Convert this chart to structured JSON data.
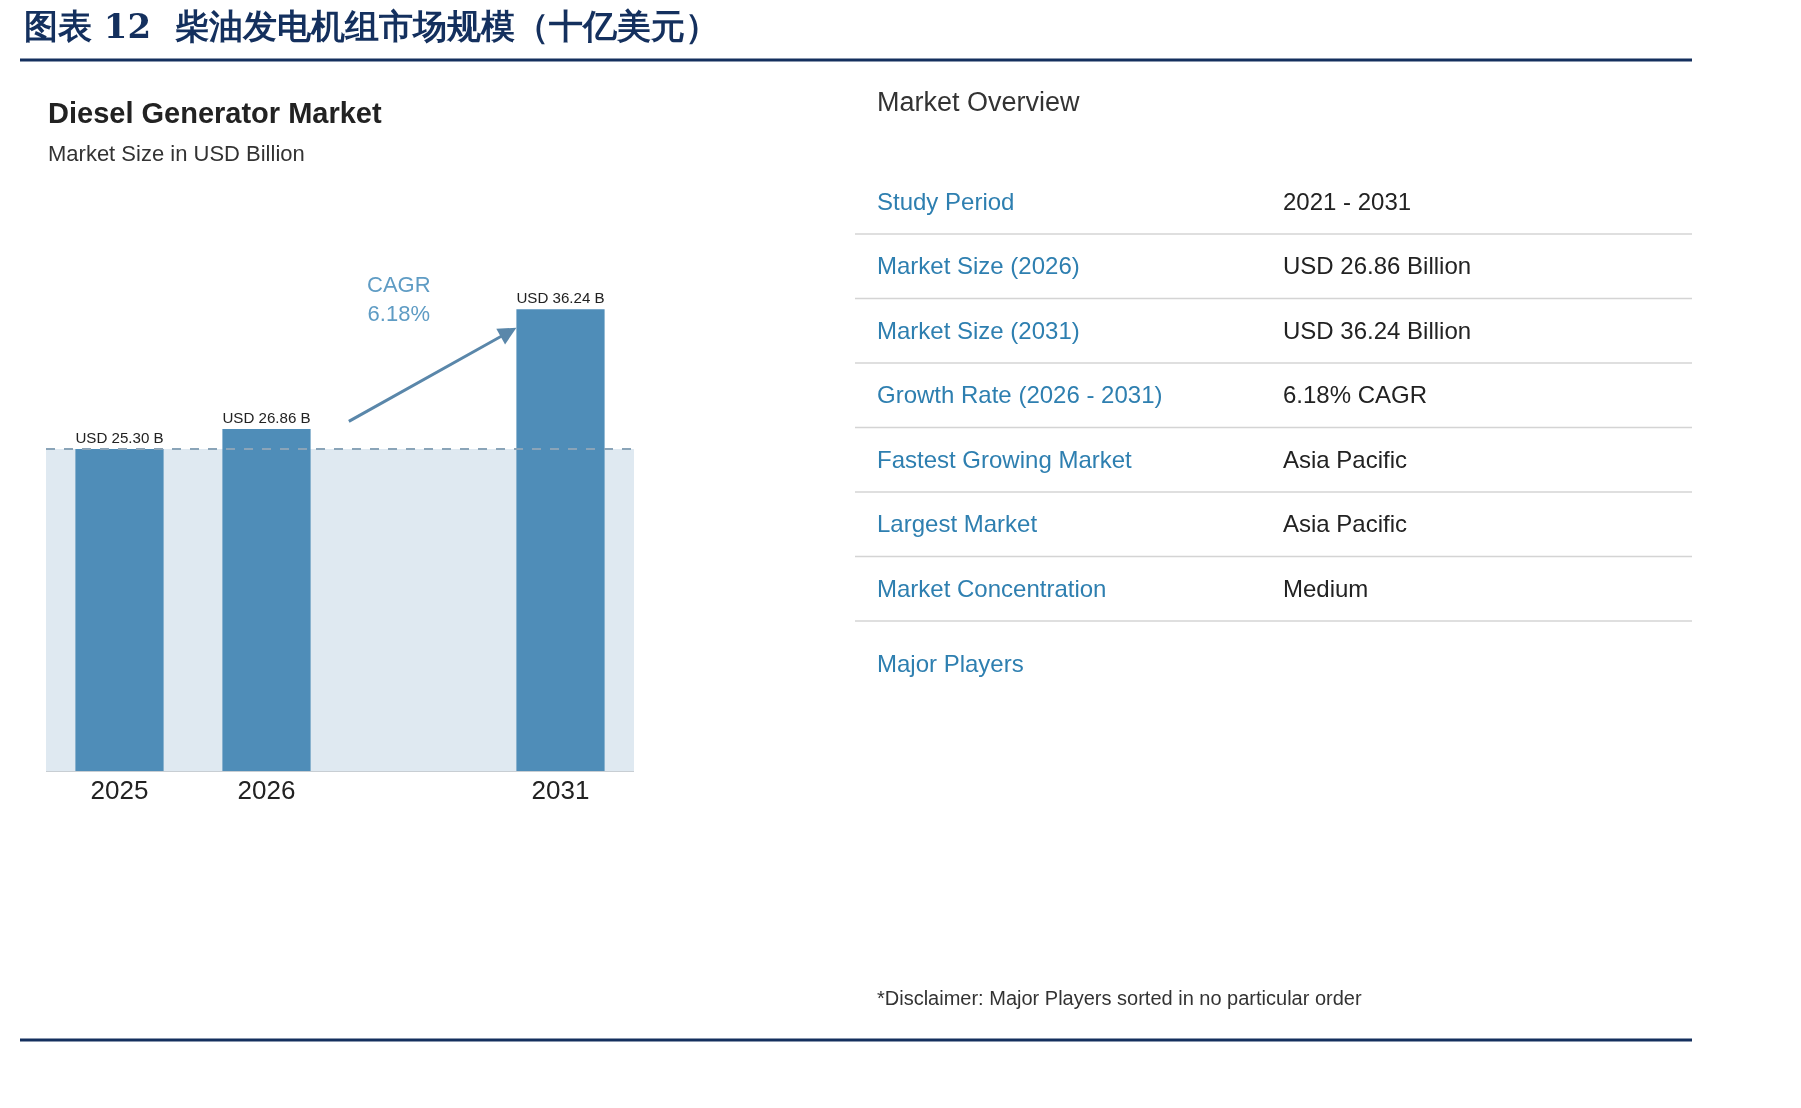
{
  "chart_data": [
    {
      "type": "bar",
      "title": "Diesel Generator Market",
      "subtitle": "Market Size in USD Billion",
      "categories": [
        "2025",
        "2026",
        null,
        "2031"
      ],
      "values": [
        25.3,
        26.86,
        null,
        36.24
      ],
      "value_labels": [
        "USD 25.30 B",
        "USD 26.86 B",
        null,
        "USD 36.24 B"
      ],
      "color": "#4f8db8",
      "ref_lines": [
        {
          "axis": "y",
          "value": 25.3,
          "line_style": "dashed",
          "color": "#8aa4b8"
        }
      ],
      "bands": [
        {
          "axis": "y",
          "from": 0,
          "to": 25.3,
          "color": "#dfe9f1"
        }
      ],
      "annotations": [
        "图表 12  柴油发电机组市场规模（十亿美元）",
        "CAGR\n6.18%"
      ]
    },
    {
      "type": "other",
      "title": "Market Overview",
      "annotations": [
        "Study Period",
        "2021 - 2031",
        "Market Size (2026)",
        "USD 26.86 Billion",
        "Market Size (2031)",
        "USD 36.24 Billion",
        "Growth Rate (2026 - 2031)",
        "6.18% CAGR",
        "Fastest Growing Market",
        "Asia Pacific",
        "Largest Market",
        "Asia Pacific",
        "Market Concentration",
        "Medium",
        "Major Players",
        "*Disclaimer: Major Players sorted in no particular order"
      ]
    }
  ]
}
